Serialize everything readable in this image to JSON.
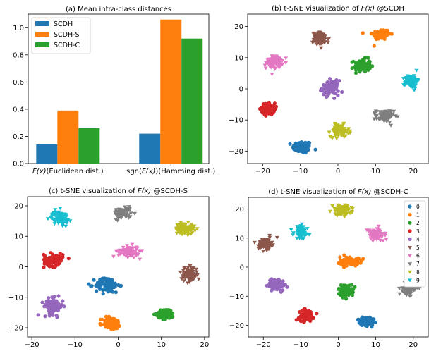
{
  "colors": [
    "#1f77b4",
    "#ff7f0e",
    "#2ca02c",
    "#d62728",
    "#9467bd",
    "#8c564b",
    "#e377c2",
    "#7f7f7f",
    "#bcbd22",
    "#17becf"
  ],
  "chart_data": [
    {
      "type": "bar",
      "title": "(a) Mean intra-class distances",
      "categories": [
        "F(x)(Euclidean dist.)",
        "sgn(F(x))(Hamming dist.)"
      ],
      "series": [
        {
          "name": "SCDH",
          "color": "#1f77b4",
          "values": [
            0.14,
            0.22
          ]
        },
        {
          "name": "SCDH-S",
          "color": "#ff7f0e",
          "values": [
            0.39,
            1.06
          ]
        },
        {
          "name": "SCDH-C",
          "color": "#2ca02c",
          "values": [
            0.26,
            0.92
          ]
        }
      ],
      "ylim": [
        0,
        1.1
      ],
      "yticks": [
        "0.0",
        "0.2",
        "0.4",
        "0.6",
        "0.8",
        "1.0"
      ],
      "legend_position": "top-left"
    },
    {
      "type": "scatter",
      "title": "(b) t-SNE visualization of F(x) @SCDH",
      "xticks": [
        "−20",
        "−10",
        "0",
        "10",
        "20"
      ],
      "yticks": [
        "−20",
        "−10",
        "0",
        "10",
        "20"
      ],
      "xlim": [
        -24,
        24
      ],
      "ylim": [
        -24,
        24
      ],
      "clusters": [
        {
          "label": "0",
          "center": [
            -9.5,
            -18.8
          ],
          "spread": [
            2.3,
            1.8
          ],
          "marker": "o"
        },
        {
          "label": "1",
          "center": [
            11.5,
            17.5
          ],
          "spread": [
            2.2,
            1.6
          ],
          "marker": "o"
        },
        {
          "label": "2",
          "center": [
            6.5,
            7.5
          ],
          "spread": [
            2.0,
            1.9
          ],
          "marker": "o"
        },
        {
          "label": "3",
          "center": [
            -18.5,
            -6.5
          ],
          "spread": [
            1.6,
            1.7
          ],
          "marker": "o"
        },
        {
          "label": "4",
          "center": [
            -2.0,
            0.3
          ],
          "spread": [
            2.0,
            2.1
          ],
          "marker": "o"
        },
        {
          "label": "5",
          "center": [
            -4.5,
            16.0
          ],
          "spread": [
            2.0,
            1.9
          ],
          "marker": "v"
        },
        {
          "label": "6",
          "center": [
            -17.0,
            8.5
          ],
          "spread": [
            1.9,
            1.8
          ],
          "marker": "v"
        },
        {
          "label": "7",
          "center": [
            12.5,
            -8.8
          ],
          "spread": [
            2.1,
            1.8
          ],
          "marker": "v"
        },
        {
          "label": "8",
          "center": [
            0.5,
            -13.5
          ],
          "spread": [
            2.2,
            1.8
          ],
          "marker": "v"
        },
        {
          "label": "9",
          "center": [
            19.5,
            2.3
          ],
          "spread": [
            1.5,
            1.9
          ],
          "marker": "v"
        }
      ]
    },
    {
      "type": "scatter",
      "title": "(c) t-SNE visualization of F(x) @SCDH-S",
      "xticks": [
        "−20",
        "−10",
        "0",
        "10",
        "20"
      ],
      "yticks": [
        "−20",
        "−10",
        "0",
        "10",
        "20"
      ],
      "xlim": [
        -21,
        21
      ],
      "ylim": [
        -23,
        23
      ],
      "clusters": [
        {
          "label": "0",
          "center": [
            -2.5,
            -6.0
          ],
          "spread": [
            2.5,
            2.3
          ],
          "marker": "o"
        },
        {
          "label": "1",
          "center": [
            -1.5,
            -18.5
          ],
          "spread": [
            2.0,
            1.9
          ],
          "marker": "o"
        },
        {
          "label": "2",
          "center": [
            11.0,
            -15.5
          ],
          "spread": [
            1.8,
            1.5
          ],
          "marker": "o"
        },
        {
          "label": "3",
          "center": [
            -15.0,
            2.3
          ],
          "spread": [
            2.0,
            1.9
          ],
          "marker": "o"
        },
        {
          "label": "4",
          "center": [
            -15.0,
            -13.0
          ],
          "spread": [
            2.0,
            2.4
          ],
          "marker": "o"
        },
        {
          "label": "5",
          "center": [
            16.5,
            -2.5
          ],
          "spread": [
            1.7,
            2.2
          ],
          "marker": "v"
        },
        {
          "label": "6",
          "center": [
            2.5,
            5.0
          ],
          "spread": [
            2.2,
            1.6
          ],
          "marker": "v"
        },
        {
          "label": "7",
          "center": [
            1.0,
            17.5
          ],
          "spread": [
            1.8,
            1.6
          ],
          "marker": "v"
        },
        {
          "label": "8",
          "center": [
            15.5,
            12.5
          ],
          "spread": [
            2.0,
            1.6
          ],
          "marker": "v"
        },
        {
          "label": "9",
          "center": [
            -13.5,
            16.0
          ],
          "spread": [
            1.7,
            2.0
          ],
          "marker": "v"
        }
      ]
    },
    {
      "type": "scatter",
      "title": "(d) t-SNE visualization of F(x) @SCDH-C",
      "xticks": [
        "−20",
        "−10",
        "0",
        "10",
        "20"
      ],
      "yticks": [
        "−20",
        "−10",
        "0",
        "10",
        "20"
      ],
      "xlim": [
        -24,
        24
      ],
      "ylim": [
        -24,
        24
      ],
      "legend": [
        "0",
        "1",
        "2",
        "3",
        "4",
        "5",
        "6",
        "7",
        "8",
        "9"
      ],
      "legend_position": "right",
      "clusters": [
        {
          "label": "0",
          "center": [
            7.5,
            -18.5
          ],
          "spread": [
            2.0,
            1.4
          ],
          "marker": "o"
        },
        {
          "label": "1",
          "center": [
            3.0,
            2.0
          ],
          "spread": [
            2.3,
            1.4
          ],
          "marker": "o"
        },
        {
          "label": "2",
          "center": [
            2.0,
            -8.0
          ],
          "spread": [
            1.8,
            1.8
          ],
          "marker": "o"
        },
        {
          "label": "3",
          "center": [
            -8.5,
            -16.5
          ],
          "spread": [
            1.8,
            1.7
          ],
          "marker": "o"
        },
        {
          "label": "4",
          "center": [
            -16.5,
            -6.0
          ],
          "spread": [
            2.0,
            1.8
          ],
          "marker": "o"
        },
        {
          "label": "5",
          "center": [
            -19.5,
            8.0
          ],
          "spread": [
            1.6,
            1.8
          ],
          "marker": "v"
        },
        {
          "label": "6",
          "center": [
            10.0,
            11.0
          ],
          "spread": [
            2.0,
            2.0
          ],
          "marker": "v"
        },
        {
          "label": "7",
          "center": [
            19.0,
            -7.5
          ],
          "spread": [
            1.6,
            1.8
          ],
          "marker": "v"
        },
        {
          "label": "8",
          "center": [
            1.0,
            19.5
          ],
          "spread": [
            2.3,
            1.6
          ],
          "marker": "v"
        },
        {
          "label": "9",
          "center": [
            -10.0,
            12.0
          ],
          "spread": [
            1.7,
            2.0
          ],
          "marker": "v"
        }
      ]
    }
  ]
}
